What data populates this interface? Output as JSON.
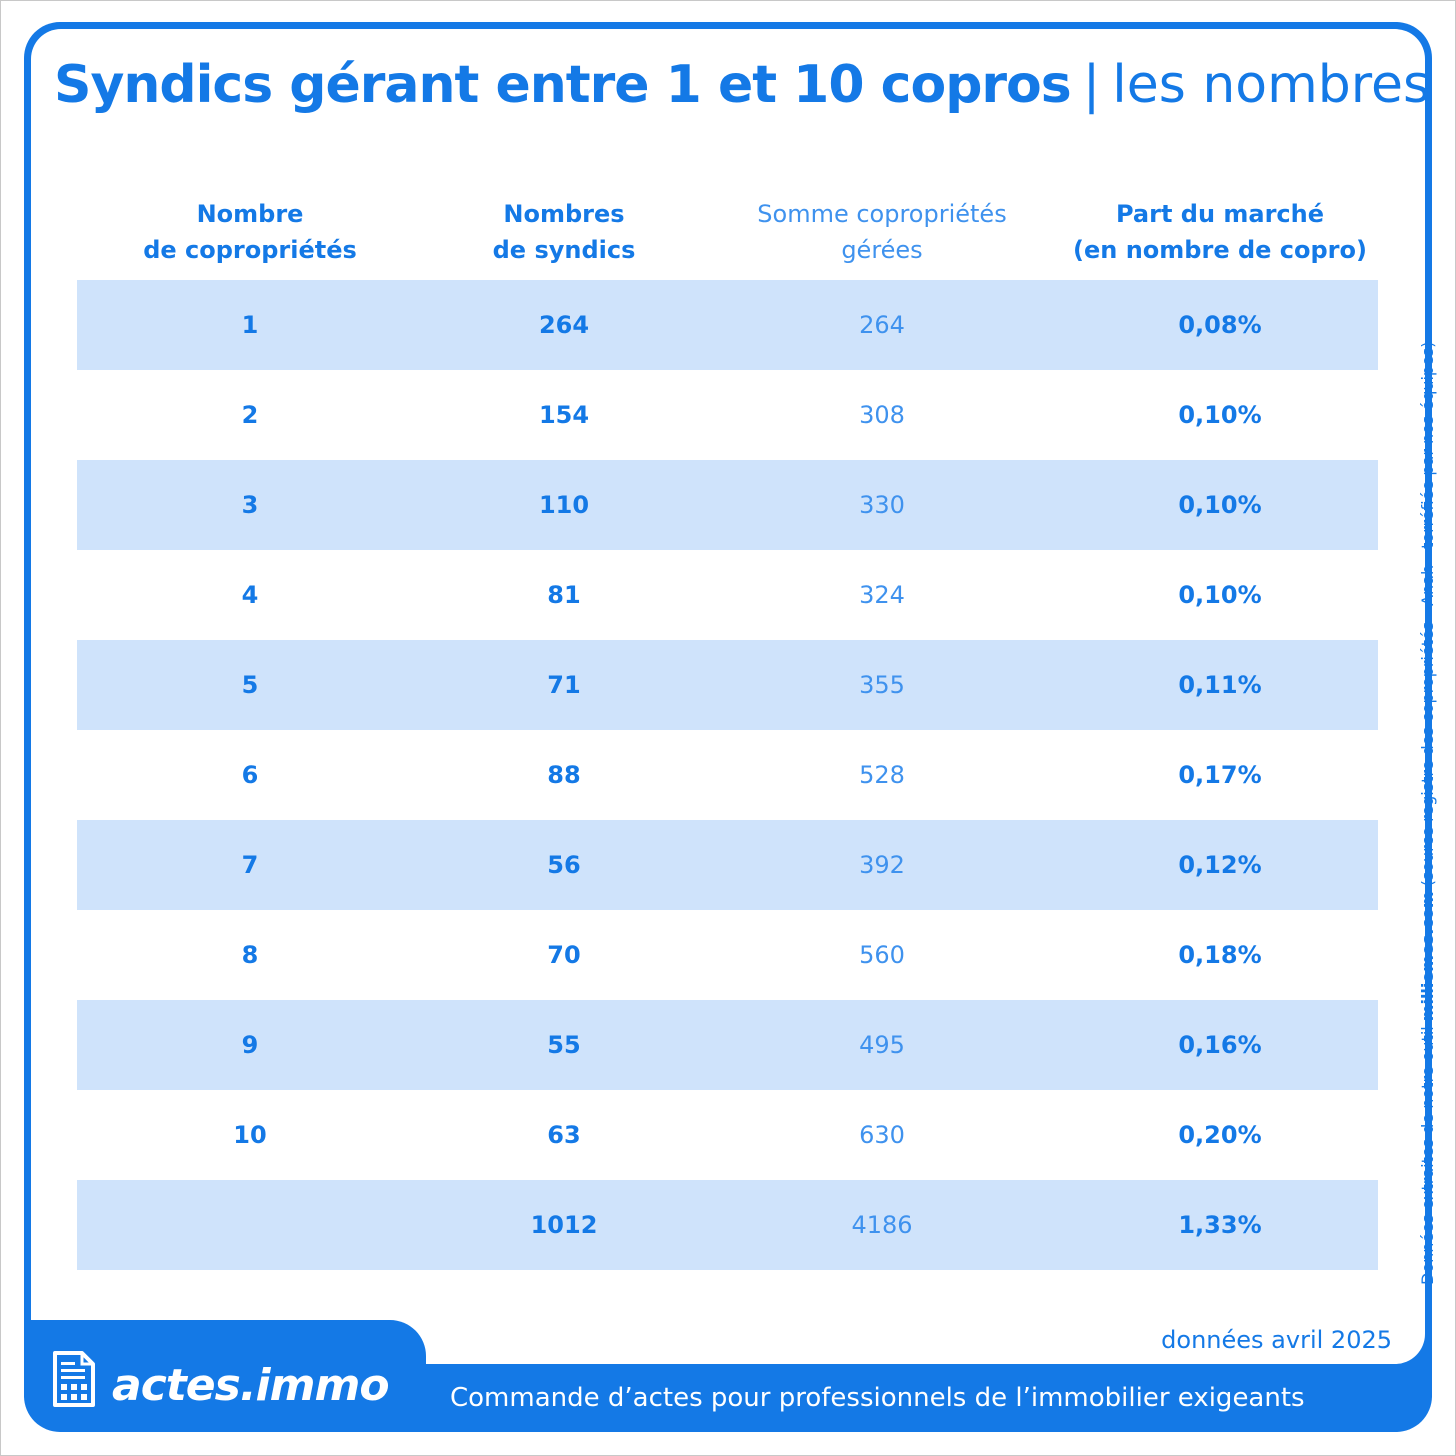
{
  "title": {
    "strong": "Syndics gérant entre 1 et 10 copros",
    "separator": "|",
    "light": "les nombres"
  },
  "chart_data": {
    "type": "table",
    "columns": [
      "Nombre\nde copropriétés",
      "Nombres\nde syndics",
      "Somme copropriétés\ngérées",
      "Part du marché\n(en nombre de copro)"
    ],
    "rows": [
      [
        "1",
        "264",
        "264",
        "0,08%"
      ],
      [
        "2",
        "154",
        "308",
        "0,10%"
      ],
      [
        "3",
        "110",
        "330",
        "0,10%"
      ],
      [
        "4",
        "81",
        "324",
        "0,10%"
      ],
      [
        "5",
        "71",
        "355",
        "0,11%"
      ],
      [
        "6",
        "88",
        "528",
        "0,17%"
      ],
      [
        "7",
        "56",
        "392",
        "0,12%"
      ],
      [
        "8",
        "70",
        "560",
        "0,18%"
      ],
      [
        "9",
        "55",
        "495",
        "0,16%"
      ],
      [
        "10",
        "63",
        "630",
        "0,20%"
      ],
      [
        "",
        "1012",
        "4186",
        "1,33%"
      ]
    ]
  },
  "source_note": {
    "prefix": "Données extraites de notre outil ",
    "bold": "milliemes.com",
    "suffix": " (source registre des copropriétés - Anah - torréfiée par nos équipes)"
  },
  "data_date": "données avril 2025",
  "brand": "actes.immo",
  "tagline": "Commande d’actes pour professionnels de l’immobilier exigeants",
  "colors": {
    "brand_blue": "#1479e6",
    "row_shade": "#cfe3fb",
    "white": "#ffffff"
  },
  "icons": [
    "document-building-icon"
  ]
}
